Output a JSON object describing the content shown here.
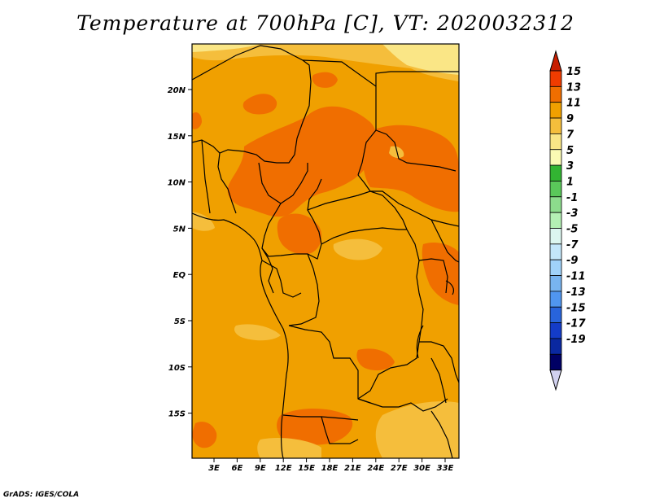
{
  "title": "Temperature at 700hPa [C], VT: 2020032312",
  "credit": "GrADS: IGES/COLA",
  "lat_labels": [
    "20N",
    "15N",
    "10N",
    "5N",
    "EQ",
    "5S",
    "10S",
    "15S"
  ],
  "lon_labels": [
    "3E",
    "6E",
    "9E",
    "12E",
    "15E",
    "18E",
    "21E",
    "24E",
    "27E",
    "30E",
    "33E"
  ],
  "colorbar": {
    "labels": [
      "15",
      "13",
      "11",
      "9",
      "7",
      "5",
      "3",
      "1",
      "-1",
      "-3",
      "-5",
      "-7",
      "-9",
      "-11",
      "-13",
      "-15",
      "-17",
      "-19"
    ],
    "colors": [
      "#c81e00",
      "#f03c00",
      "#f06e00",
      "#f0a000",
      "#f5be3c",
      "#fae686",
      "#fafab4",
      "#32b432",
      "#5ac85a",
      "#8cdc8c",
      "#b4f0b4",
      "#dcf6f0",
      "#c3e6fa",
      "#a0d2fa",
      "#78b4f0",
      "#5096f0",
      "#2864dc",
      "#143cc8",
      "#0a28a0",
      "#000064",
      "#d2d2f0"
    ]
  },
  "map_colors": {
    "base": "#f0a000",
    "warm": "#f06e00",
    "mid": "#f5be3c",
    "cool": "#fae686",
    "border": "#000000"
  }
}
